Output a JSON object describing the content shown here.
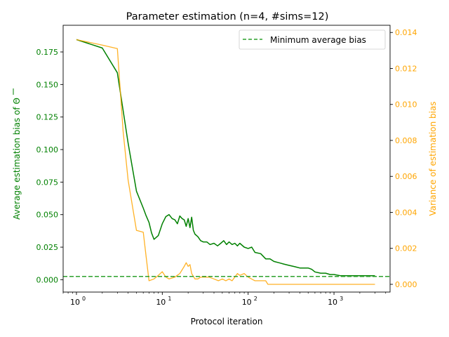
{
  "chart_data": {
    "type": "line",
    "title": "Parameter estimation (n=4, #sims=12)",
    "xlabel": "Protocol iteration",
    "ylabel_left": "Average estimation bias of Θ",
    "ylabel_right": "Variance of estimation bias",
    "x_scale": "log",
    "xlim": [
      0.7,
      4500
    ],
    "x_ticks": [
      {
        "value": 1,
        "label": "10",
        "exp": "0"
      },
      {
        "value": 10,
        "label": "10",
        "exp": "1"
      },
      {
        "value": 100,
        "label": "10",
        "exp": "2"
      },
      {
        "value": 1000,
        "label": "10",
        "exp": "3"
      }
    ],
    "y_left_lim": [
      -0.0095,
      0.1955
    ],
    "y_left_ticks": [
      "0.000",
      "0.025",
      "0.050",
      "0.075",
      "0.100",
      "0.125",
      "0.150",
      "0.175"
    ],
    "y_right_lim": [
      -0.00043,
      0.0144
    ],
    "y_right_ticks": [
      "0.000",
      "0.002",
      "0.004",
      "0.006",
      "0.008",
      "0.010",
      "0.012",
      "0.014"
    ],
    "grid": false,
    "legend": {
      "position": "top-right",
      "entries": [
        {
          "label": "Minimum average bias",
          "color": "#2ca02c",
          "style": "dashed"
        }
      ]
    },
    "series": [
      {
        "axis": "left",
        "color": "#008000",
        "x": [
          1,
          2,
          3,
          3.5,
          4,
          5,
          6,
          6.5,
          7,
          7.5,
          8,
          9,
          10,
          11,
          12,
          13,
          14,
          15,
          16,
          17,
          18,
          19,
          20,
          21,
          22,
          23,
          24,
          26,
          28,
          30,
          33,
          36,
          40,
          44,
          48,
          52,
          56,
          60,
          65,
          70,
          75,
          80,
          90,
          100,
          110,
          120,
          140,
          160,
          180,
          200,
          230,
          260,
          300,
          350,
          400,
          450,
          500,
          550,
          600,
          700,
          800,
          900,
          1000,
          1200,
          1500,
          2000,
          2500,
          3000
        ],
        "y": [
          0.1845,
          0.178,
          0.159,
          0.13,
          0.105,
          0.068,
          0.055,
          0.049,
          0.044,
          0.036,
          0.031,
          0.034,
          0.043,
          0.0485,
          0.05,
          0.047,
          0.046,
          0.043,
          0.049,
          0.047,
          0.046,
          0.041,
          0.047,
          0.04,
          0.048,
          0.038,
          0.035,
          0.033,
          0.03,
          0.029,
          0.029,
          0.027,
          0.028,
          0.026,
          0.028,
          0.03,
          0.027,
          0.029,
          0.027,
          0.028,
          0.026,
          0.028,
          0.025,
          0.024,
          0.025,
          0.021,
          0.02,
          0.016,
          0.016,
          0.014,
          0.013,
          0.012,
          0.011,
          0.01,
          0.009,
          0.009,
          0.009,
          0.008,
          0.006,
          0.005,
          0.005,
          0.004,
          0.004,
          0.003,
          0.003,
          0.003,
          0.003,
          0.003
        ]
      },
      {
        "axis": "right",
        "color": "#ffa500",
        "x": [
          1,
          2,
          3,
          3.5,
          4,
          5,
          6,
          6.5,
          7,
          8,
          9,
          10,
          11,
          12,
          14,
          16,
          18,
          19,
          20,
          21,
          22,
          24,
          26,
          28,
          30,
          35,
          40,
          45,
          50,
          55,
          60,
          65,
          70,
          75,
          80,
          90,
          100,
          120,
          140,
          160,
          170,
          200,
          300,
          500,
          1000,
          3000
        ],
        "y": [
          0.0136,
          0.0133,
          0.0131,
          0.0085,
          0.0058,
          0.003,
          0.0029,
          0.0015,
          0.0002,
          0.0003,
          0.0005,
          0.0007,
          0.0004,
          0.0003,
          0.0004,
          0.0006,
          0.001,
          0.0012,
          0.001,
          0.0011,
          0.0006,
          0.0003,
          0.0003,
          0.0004,
          0.0004,
          0.0004,
          0.0003,
          0.0002,
          0.0003,
          0.0002,
          0.0003,
          0.0002,
          0.0004,
          0.0006,
          0.0005,
          0.0006,
          0.0004,
          0.0002,
          0.0002,
          0.0002,
          0.0,
          0.0,
          0.0,
          0.0,
          0.0,
          0.0
        ]
      }
    ],
    "reference_lines": [
      {
        "axis": "left",
        "label": "Minimum average bias",
        "y": 0.0025,
        "color": "#2ca02c",
        "style": "dashed"
      }
    ]
  },
  "colors": {
    "left_axis": "#008000",
    "right_axis": "#ffa500",
    "reference": "#2ca02c"
  }
}
